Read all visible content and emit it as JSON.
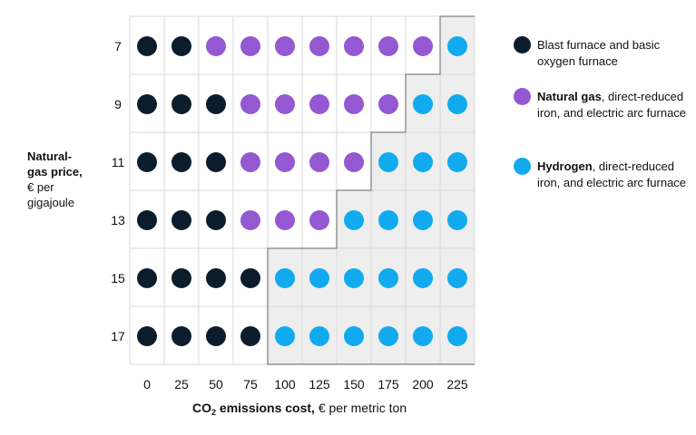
{
  "chart_data": {
    "type": "heatmap",
    "xlabel": {
      "prefix": "CO",
      "sub": "2",
      "bold_suffix": " emissions cost,",
      "rest": " € per metric ton"
    },
    "ylabel": {
      "bold": [
        "Natural-",
        "gas price,"
      ],
      "light": [
        "€ per",
        "gigajoule"
      ]
    },
    "x_categories": [
      "0",
      "25",
      "50",
      "75",
      "100",
      "125",
      "150",
      "175",
      "200",
      "225"
    ],
    "y_categories": [
      "7",
      "9",
      "11",
      "13",
      "15",
      "17"
    ],
    "colors": {
      "blast": "#0b1c2c",
      "natgas": "#9458d2",
      "hydrogen": "#11aaef",
      "shade": "#eeeeee",
      "grid": "#d9d9d9",
      "boundary": "#666666"
    },
    "cells": [
      [
        "blast",
        "blast",
        "natgas",
        "natgas",
        "natgas",
        "natgas",
        "natgas",
        "natgas",
        "natgas",
        "hydrogen"
      ],
      [
        "blast",
        "blast",
        "blast",
        "natgas",
        "natgas",
        "natgas",
        "natgas",
        "natgas",
        "hydrogen",
        "hydrogen"
      ],
      [
        "blast",
        "blast",
        "blast",
        "natgas",
        "natgas",
        "natgas",
        "natgas",
        "hydrogen",
        "hydrogen",
        "hydrogen"
      ],
      [
        "blast",
        "blast",
        "blast",
        "natgas",
        "natgas",
        "natgas",
        "hydrogen",
        "hydrogen",
        "hydrogen",
        "hydrogen"
      ],
      [
        "blast",
        "blast",
        "blast",
        "blast",
        "hydrogen",
        "hydrogen",
        "hydrogen",
        "hydrogen",
        "hydrogen",
        "hydrogen"
      ],
      [
        "blast",
        "blast",
        "blast",
        "blast",
        "hydrogen",
        "hydrogen",
        "hydrogen",
        "hydrogen",
        "hydrogen",
        "hydrogen"
      ]
    ],
    "legend": [
      {
        "key": "blast",
        "bold": "",
        "text": "Blast furnace and basic oxygen furnace"
      },
      {
        "key": "natgas",
        "bold": "Natural gas",
        "text": ", direct-reduced iron, and electric arc furnace"
      },
      {
        "key": "hydrogen",
        "bold": "Hydrogen",
        "text": ", direct-reduced iron, and electric arc furnace"
      }
    ]
  }
}
